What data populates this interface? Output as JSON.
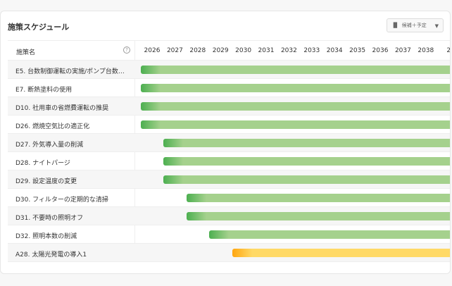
{
  "title": "施策スケジュール",
  "selector": {
    "icon": "bar-chart-icon",
    "value": "候補＋予定"
  },
  "header": {
    "name": "施策名",
    "help": "?"
  },
  "years": [
    "2026",
    "2027",
    "2028",
    "2029",
    "2030",
    "2031",
    "2032",
    "2033",
    "2034",
    "2035",
    "2036",
    "2037",
    "2038",
    "2"
  ],
  "colors": {
    "green": "#a5d18d",
    "green_start": "#4caf50",
    "yellow": "#ffd966",
    "yellow_start": "#ffa610"
  },
  "rows": [
    {
      "label": "E5. 台数制御運転の実施/ポンプ台数…",
      "start": "2026",
      "color": "green"
    },
    {
      "label": "E7. 断熱塗料の使用",
      "start": "2026",
      "color": "green"
    },
    {
      "label": "D10. 社用車の省燃費運転の推奨",
      "start": "2026",
      "color": "green"
    },
    {
      "label": "D26. 燃焼空気比の適正化",
      "start": "2026",
      "color": "green"
    },
    {
      "label": "D27. 外気導入量の削減",
      "start": "2027",
      "color": "green"
    },
    {
      "label": "D28. ナイトパージ",
      "start": "2027",
      "color": "green"
    },
    {
      "label": "D29. 設定温度の変更",
      "start": "2027",
      "color": "green"
    },
    {
      "label": "D30. フィルターの定期的な清掃",
      "start": "2028",
      "color": "green"
    },
    {
      "label": "D31. 不要時の照明オフ",
      "start": "2028",
      "color": "green"
    },
    {
      "label": "D32. 照明本数の削減",
      "start": "2029",
      "color": "green"
    },
    {
      "label": "A28. 太陽光発電の導入1",
      "start": "2030",
      "color": "yellow"
    }
  ]
}
